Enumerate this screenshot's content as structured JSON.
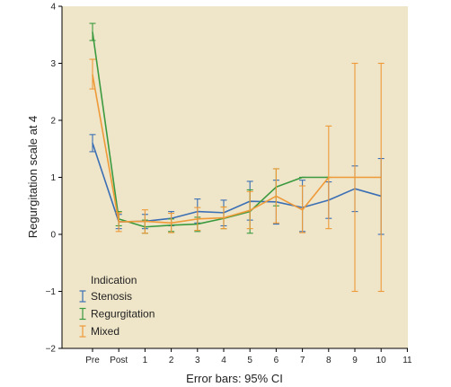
{
  "chart_data": {
    "type": "line",
    "xlabel": "Error bars: 95% CI",
    "ylabel": "Regurgitation scale at 4",
    "ylim": [
      -2,
      4
    ],
    "yticks": [
      "−2",
      "−1",
      "0",
      "1",
      "2",
      "3",
      "4"
    ],
    "categories": [
      "Pre",
      "Post",
      "1",
      "2",
      "3",
      "4",
      "5",
      "6",
      "7",
      "8",
      "9",
      "10",
      "11"
    ],
    "background": "#efe5c8",
    "legend": {
      "title": "Indication",
      "placement": "bottom-left"
    },
    "series": [
      {
        "name": "Stenosis",
        "color": "#3a6fb5",
        "points": [
          {
            "x": "Pre",
            "y": 1.6,
            "lo": 1.45,
            "hi": 1.75
          },
          {
            "x": "Post",
            "y": 0.22,
            "lo": 0.1,
            "hi": 0.35
          },
          {
            "x": "1",
            "y": 0.23,
            "lo": 0.1,
            "hi": 0.35
          },
          {
            "x": "2",
            "y": 0.28,
            "lo": 0.15,
            "hi": 0.4
          },
          {
            "x": "3",
            "y": 0.4,
            "lo": 0.2,
            "hi": 0.62
          },
          {
            "x": "4",
            "y": 0.38,
            "lo": 0.15,
            "hi": 0.6
          },
          {
            "x": "5",
            "y": 0.58,
            "lo": 0.25,
            "hi": 0.93
          },
          {
            "x": "6",
            "y": 0.57,
            "lo": 0.18,
            "hi": 0.95
          },
          {
            "x": "7",
            "y": 0.47,
            "lo": 0.05,
            "hi": 0.95
          },
          {
            "x": "8",
            "y": 0.6,
            "lo": 0.28,
            "hi": 0.92
          },
          {
            "x": "9",
            "y": 0.8,
            "lo": 0.4,
            "hi": 1.2
          },
          {
            "x": "10",
            "y": 0.67,
            "lo": 0.0,
            "hi": 1.33
          }
        ]
      },
      {
        "name": "Regurgitation",
        "color": "#3a9a3f",
        "points": [
          {
            "x": "Pre",
            "y": 3.55,
            "lo": 3.4,
            "hi": 3.7
          },
          {
            "x": "Post",
            "y": 0.27,
            "lo": 0.15,
            "hi": 0.4
          },
          {
            "x": "1",
            "y": 0.13,
            "lo": 0.02,
            "hi": 0.25
          },
          {
            "x": "2",
            "y": 0.16,
            "lo": 0.05,
            "hi": 0.27
          },
          {
            "x": "3",
            "y": 0.18,
            "lo": 0.05,
            "hi": 0.3
          },
          {
            "x": "4",
            "y": 0.28,
            "lo": 0.1,
            "hi": 0.48
          },
          {
            "x": "5",
            "y": 0.4,
            "lo": 0.02,
            "hi": 0.78
          },
          {
            "x": "6",
            "y": 0.83,
            "lo": 0.5,
            "hi": 1.15
          },
          {
            "x": "7",
            "y": 1.0,
            "lo": 1.0,
            "hi": 1.0
          },
          {
            "x": "8",
            "y": 1.0,
            "lo": 1.0,
            "hi": 1.0
          }
        ]
      },
      {
        "name": "Mixed",
        "color": "#ee9a38",
        "points": [
          {
            "x": "Pre",
            "y": 2.8,
            "lo": 2.55,
            "hi": 3.07
          },
          {
            "x": "Post",
            "y": 0.22,
            "lo": 0.05,
            "hi": 0.38
          },
          {
            "x": "1",
            "y": 0.23,
            "lo": 0.02,
            "hi": 0.43
          },
          {
            "x": "2",
            "y": 0.2,
            "lo": 0.03,
            "hi": 0.37
          },
          {
            "x": "3",
            "y": 0.27,
            "lo": 0.07,
            "hi": 0.47
          },
          {
            "x": "4",
            "y": 0.29,
            "lo": 0.1,
            "hi": 0.48
          },
          {
            "x": "5",
            "y": 0.42,
            "lo": 0.1,
            "hi": 0.75
          },
          {
            "x": "6",
            "y": 0.67,
            "lo": 0.2,
            "hi": 1.15
          },
          {
            "x": "7",
            "y": 0.43,
            "lo": 0.03,
            "hi": 0.85
          },
          {
            "x": "8",
            "y": 1.0,
            "lo": 0.1,
            "hi": 1.9
          },
          {
            "x": "9",
            "y": 1.0,
            "lo": -1.0,
            "hi": 3.0
          },
          {
            "x": "10",
            "y": 1.0,
            "lo": -1.0,
            "hi": 3.0
          }
        ]
      }
    ]
  }
}
